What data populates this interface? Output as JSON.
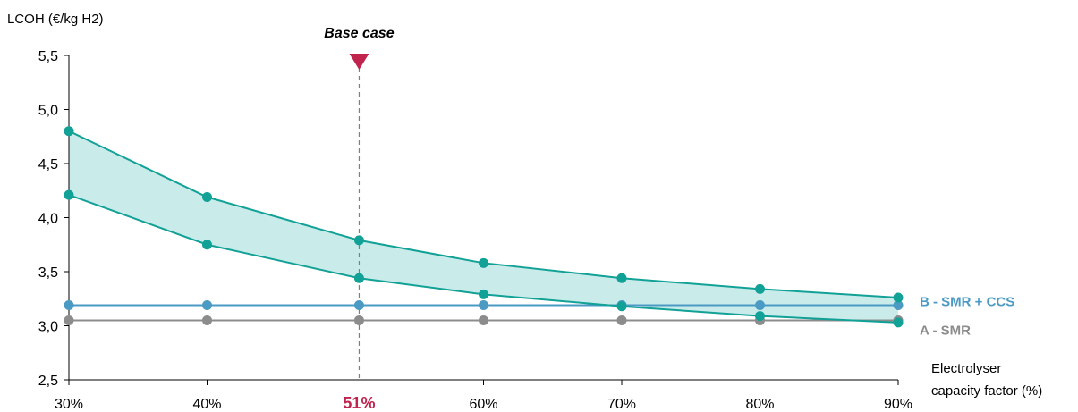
{
  "chart_data": {
    "type": "line",
    "ylabel": "LCOH (€/kg H2)",
    "xlabel_lines": [
      "Electrolyser",
      "capacity factor (%)"
    ],
    "ylim": [
      2.5,
      5.5
    ],
    "y_ticks": [
      "2,5",
      "3,0",
      "3,5",
      "4,0",
      "4,5",
      "5,0",
      "5,5"
    ],
    "y_tick_values": [
      2.5,
      3.0,
      3.5,
      4.0,
      4.5,
      5.0,
      5.5
    ],
    "x": [
      30,
      40,
      51,
      60,
      70,
      80,
      90
    ],
    "x_tick_labels": [
      "30%",
      "40%",
      "51%",
      "60%",
      "70%",
      "80%",
      "90%"
    ],
    "highlight_tick": "51%",
    "base_case": {
      "x": 51,
      "label": "Base case"
    },
    "series": [
      {
        "name": "B - SMR + CCS",
        "color": "#4a9ac4",
        "values": [
          3.19,
          3.19,
          3.19,
          3.19,
          3.19,
          3.19,
          3.19
        ]
      },
      {
        "name": "A - SMR",
        "color": "#8c8c8c",
        "values": [
          3.05,
          3.05,
          3.05,
          3.05,
          3.05,
          3.05,
          3.05
        ]
      },
      {
        "color": "#12a196",
        "values": [
          4.8,
          4.19,
          3.79,
          3.58,
          3.44,
          3.34,
          3.26
        ]
      },
      {
        "color": "#12a196",
        "values": [
          4.21,
          3.75,
          3.44,
          3.29,
          3.18,
          3.09,
          3.03
        ]
      }
    ],
    "band_fill": "#c9ecea",
    "grid": false
  }
}
